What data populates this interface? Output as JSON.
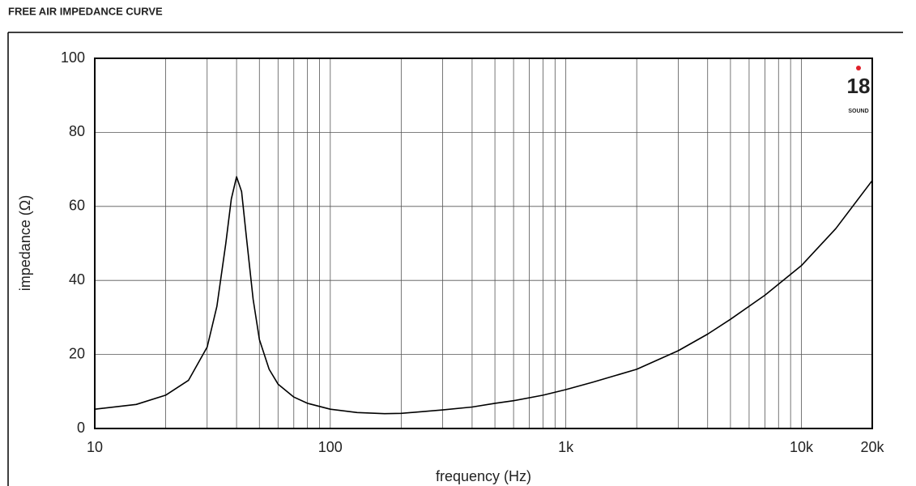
{
  "chart_data": {
    "type": "line",
    "title": "FREE AIR IMPEDANCE CURVE",
    "x_label": "frequency (Hz)",
    "y_label": "impedance (Ω)",
    "logo": "18",
    "logo_sub": "SOUND",
    "x": [
      10,
      15,
      20,
      25,
      30,
      33,
      36,
      38,
      40,
      42,
      44,
      47,
      50,
      55,
      60,
      70,
      80,
      100,
      130,
      170,
      200,
      300,
      400,
      500,
      600,
      800,
      1000,
      1300,
      2000,
      3000,
      4000,
      5000,
      7000,
      10000,
      14000,
      20000
    ],
    "values": [
      5.2,
      6.5,
      9,
      13,
      22,
      33,
      50,
      62,
      68,
      64,
      52,
      35,
      24,
      16,
      12,
      8.5,
      6.8,
      5.2,
      4.3,
      4,
      4.1,
      5,
      5.8,
      6.8,
      7.5,
      9,
      10.5,
      12.5,
      16,
      21,
      25.5,
      29.5,
      36,
      44,
      54,
      67
    ],
    "color": "#000000",
    "xlog": true,
    "grid": true,
    "xlim": [
      10,
      20000
    ],
    "ylim": [
      0,
      100
    ],
    "xticks": [
      10,
      100,
      {
        "value": 1000,
        "label": "1k"
      },
      {
        "value": 10000,
        "label": "10k"
      },
      {
        "value": 20000,
        "label": "20k"
      }
    ],
    "yticks": [
      0,
      20,
      40,
      60,
      80,
      100
    ]
  }
}
